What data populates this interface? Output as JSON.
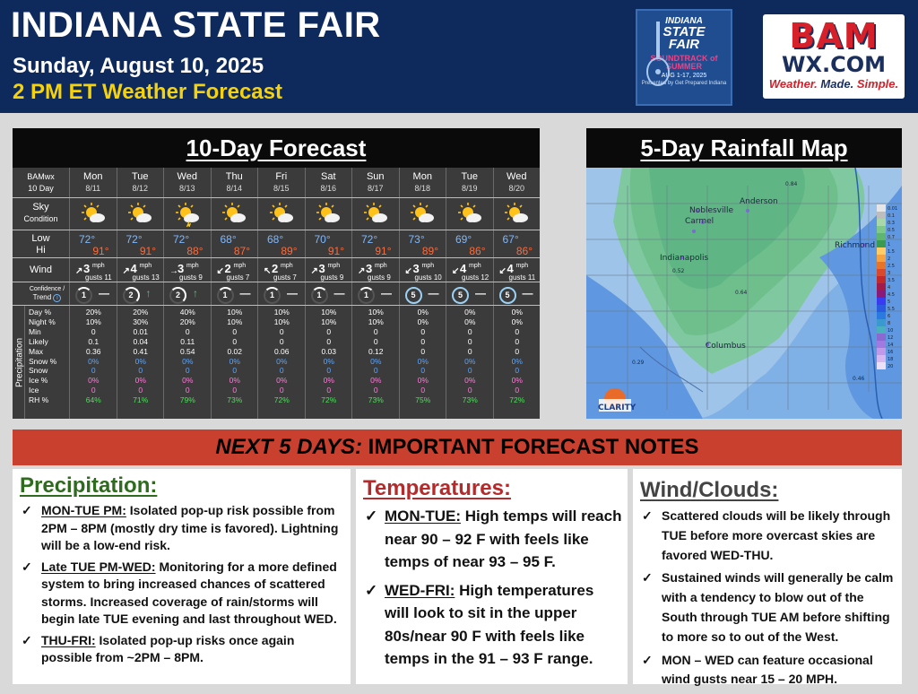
{
  "header": {
    "title": "INDIANA STATE FAIR",
    "date": "Sunday, August 10, 2025",
    "subtitle": "2 PM ET Weather Forecast"
  },
  "fair_logo": {
    "line1": "INDIANA",
    "line2": "STATE",
    "line3": "FAIR",
    "tagline": "SOUNDTRACK of SUMMER",
    "dates": "AUG 1-17, 2025",
    "presented": "Presented by Get Prepared Indiana"
  },
  "bam_logo": {
    "mark": "BAM",
    "site": "WX.COM",
    "slogan_1": "Weather.",
    "slogan_2": "Made.",
    "slogan_3": "Simple."
  },
  "forecast": {
    "heading": "10-Day Forecast",
    "corner_1": "BAMwx",
    "corner_2": "10 Day",
    "sky_label_1": "Sky",
    "sky_label_2": "Condition",
    "low_label": "Low",
    "hi_label": "Hi",
    "wind_label": "Wind",
    "conf_label_1": "Confidence /",
    "conf_label_2": "Trend",
    "precip_label": "Precipitation",
    "row_labels": [
      "Day %",
      "Night %",
      "Min",
      "Likely",
      "Max",
      "Snow %",
      "Snow",
      "Ice %",
      "Ice",
      "RH %"
    ],
    "days": [
      {
        "name": "Mon",
        "date": "8/11",
        "low": "72°",
        "hi": "91°",
        "wind_dir": "↗",
        "wind": "3",
        "gusts": "gusts 11",
        "conf": "1",
        "trend": "—",
        "day_pct": "20%",
        "night_pct": "10%",
        "min": "0",
        "likely": "0.1",
        "max": "0.36",
        "snow_pct": "0%",
        "snow": "0",
        "ice_pct": "0%",
        "ice": "0",
        "rh": "64%"
      },
      {
        "name": "Tue",
        "date": "8/12",
        "low": "72°",
        "hi": "91°",
        "wind_dir": "↗",
        "wind": "4",
        "gusts": "gusts 13",
        "conf": "2",
        "trend": "↑",
        "day_pct": "20%",
        "night_pct": "30%",
        "min": "0.01",
        "likely": "0.04",
        "max": "0.41",
        "snow_pct": "0%",
        "snow": "0",
        "ice_pct": "0%",
        "ice": "0",
        "rh": "71%"
      },
      {
        "name": "Wed",
        "date": "8/13",
        "low": "72°",
        "hi": "88°",
        "wind_dir": "→",
        "wind": "3",
        "gusts": "gusts 9",
        "conf": "2",
        "trend": "↑",
        "day_pct": "40%",
        "night_pct": "20%",
        "min": "0",
        "likely": "0.11",
        "max": "0.54",
        "snow_pct": "0%",
        "snow": "0",
        "ice_pct": "0%",
        "ice": "0",
        "rh": "79%"
      },
      {
        "name": "Thu",
        "date": "8/14",
        "low": "68°",
        "hi": "87°",
        "wind_dir": "↙",
        "wind": "2",
        "gusts": "gusts 7",
        "conf": "1",
        "trend": "—",
        "day_pct": "10%",
        "night_pct": "10%",
        "min": "0",
        "likely": "0",
        "max": "0.02",
        "snow_pct": "0%",
        "snow": "0",
        "ice_pct": "0%",
        "ice": "0",
        "rh": "73%"
      },
      {
        "name": "Fri",
        "date": "8/15",
        "low": "68°",
        "hi": "89°",
        "wind_dir": "↖",
        "wind": "2",
        "gusts": "gusts 7",
        "conf": "1",
        "trend": "—",
        "day_pct": "10%",
        "night_pct": "10%",
        "min": "0",
        "likely": "0",
        "max": "0.06",
        "snow_pct": "0%",
        "snow": "0",
        "ice_pct": "0%",
        "ice": "0",
        "rh": "72%"
      },
      {
        "name": "Sat",
        "date": "8/16",
        "low": "70°",
        "hi": "91°",
        "wind_dir": "↗",
        "wind": "3",
        "gusts": "gusts 9",
        "conf": "1",
        "trend": "—",
        "day_pct": "10%",
        "night_pct": "10%",
        "min": "0",
        "likely": "0",
        "max": "0.03",
        "snow_pct": "0%",
        "snow": "0",
        "ice_pct": "0%",
        "ice": "0",
        "rh": "72%"
      },
      {
        "name": "Sun",
        "date": "8/17",
        "low": "72°",
        "hi": "91°",
        "wind_dir": "↗",
        "wind": "3",
        "gusts": "gusts 9",
        "conf": "1",
        "trend": "—",
        "day_pct": "10%",
        "night_pct": "10%",
        "min": "0",
        "likely": "0",
        "max": "0.12",
        "snow_pct": "0%",
        "snow": "0",
        "ice_pct": "0%",
        "ice": "0",
        "rh": "73%"
      },
      {
        "name": "Mon",
        "date": "8/18",
        "low": "73°",
        "hi": "89°",
        "wind_dir": "↙",
        "wind": "3",
        "gusts": "gusts 10",
        "conf": "5",
        "trend": "—",
        "day_pct": "0%",
        "night_pct": "0%",
        "min": "0",
        "likely": "0",
        "max": "0",
        "snow_pct": "0%",
        "snow": "0",
        "ice_pct": "0%",
        "ice": "0",
        "rh": "75%"
      },
      {
        "name": "Tue",
        "date": "8/19",
        "low": "69°",
        "hi": "86°",
        "wind_dir": "↙",
        "wind": "4",
        "gusts": "gusts 12",
        "conf": "5",
        "trend": "—",
        "day_pct": "0%",
        "night_pct": "0%",
        "min": "0",
        "likely": "0",
        "max": "0",
        "snow_pct": "0%",
        "snow": "0",
        "ice_pct": "0%",
        "ice": "0",
        "rh": "73%"
      },
      {
        "name": "Wed",
        "date": "8/20",
        "low": "67°",
        "hi": "86°",
        "wind_dir": "↙",
        "wind": "4",
        "gusts": "gusts 11",
        "conf": "5",
        "trend": "—",
        "day_pct": "0%",
        "night_pct": "0%",
        "min": "0",
        "likely": "0",
        "max": "0",
        "snow_pct": "0%",
        "snow": "0",
        "ice_pct": "0%",
        "ice": "0",
        "rh": "72%"
      }
    ],
    "wind_unit": "mph"
  },
  "rain_map": {
    "heading": "5-Day Rainfall Map",
    "cities": [
      "Anderson",
      "Noblesville",
      "Carmel",
      "Indianapolis",
      "Richmond",
      "Columbus"
    ],
    "values": [
      "0.84",
      "0.52",
      "0.64",
      "0.29",
      "0.46"
    ],
    "legend": [
      "0.01",
      "0.1",
      "0.3",
      "0.5",
      "0.7",
      "1",
      "1.5",
      "2",
      "2.5",
      "3",
      "3.5",
      "4",
      "4.5",
      "5",
      "5.5",
      "6",
      "8",
      "10",
      "12",
      "14",
      "16",
      "18",
      "20"
    ],
    "brand": "CLARITY"
  },
  "notes": {
    "banner_italic": "NEXT 5 DAYS:",
    "banner_rest": " IMPORTANT FORECAST NOTES",
    "precipitation": {
      "heading": "Precipitation:",
      "items": [
        {
          "lead": "MON-TUE PM:",
          "text": " Isolated pop-up risk possible from 2PM – 8PM (mostly dry time is favored). Lightning will be a low-end risk."
        },
        {
          "lead": "Late TUE PM-WED:",
          "text": " Monitoring for a more defined system to bring increased chances of scattered storms. Increased coverage of rain/storms will begin late TUE evening and last throughout WED."
        },
        {
          "lead": "THU-FRI:",
          "text": " Isolated pop-up risks once again possible from ~2PM – 8PM."
        }
      ]
    },
    "temperatures": {
      "heading": "Temperatures:",
      "items": [
        {
          "lead": "MON-TUE:",
          "text": " High temps will reach near 90 – 92 F with feels like temps of near 93 – 95 F."
        },
        {
          "lead": "WED-FRI:",
          "text": " High temperatures will look to sit in the upper 80s/near 90 F with feels like temps in the 91 – 93 F range."
        }
      ]
    },
    "wind_clouds": {
      "heading": "Wind/Clouds:",
      "items": [
        {
          "text": "Scattered clouds will be likely through TUE before more overcast skies are favored WED-THU."
        },
        {
          "text": "Sustained winds will generally be calm with a tendency to blow out of the South through TUE AM before shifting to more so to out of the West."
        },
        {
          "text": "MON – WED can feature occasional wind gusts near 15 – 20 MPH."
        }
      ]
    }
  }
}
